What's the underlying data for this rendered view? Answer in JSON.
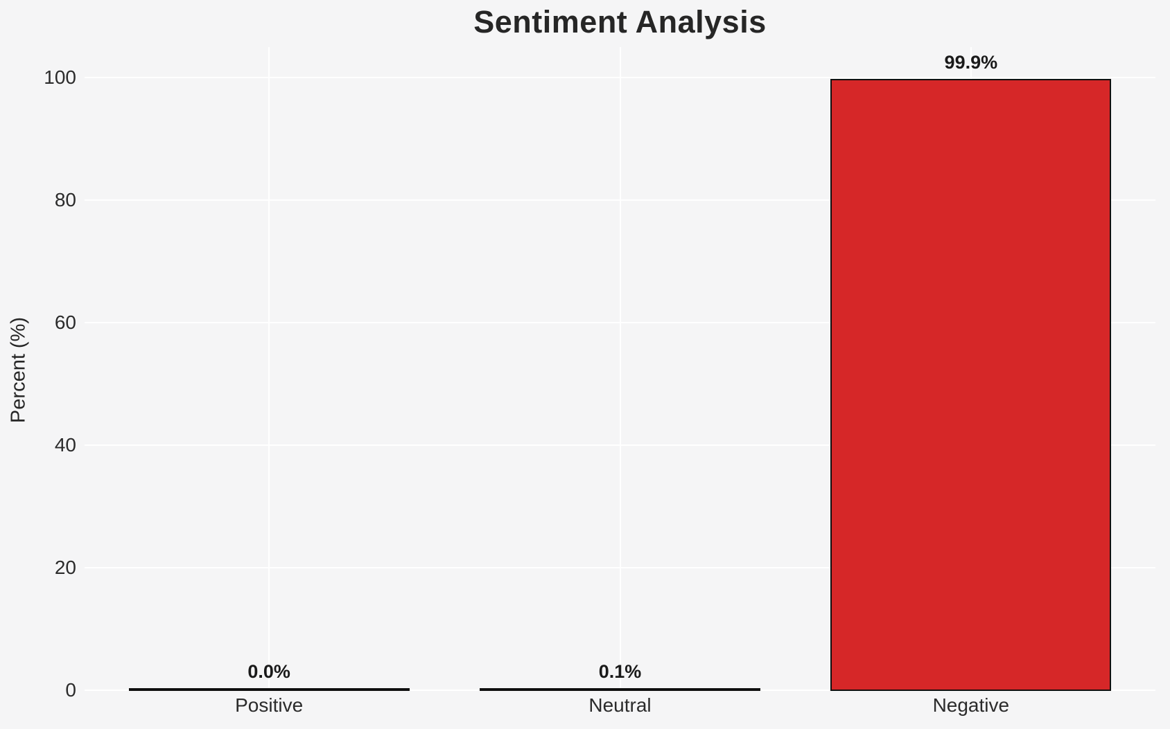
{
  "chart_data": {
    "type": "bar",
    "title": "Sentiment Analysis",
    "xlabel": "",
    "ylabel": "Percent (%)",
    "categories": [
      "Positive",
      "Neutral",
      "Negative"
    ],
    "values": [
      0.0,
      0.1,
      99.9
    ],
    "bar_labels": [
      "0.0%",
      "0.1%",
      "99.9%"
    ],
    "yticks": [
      0,
      20,
      40,
      60,
      80,
      100
    ],
    "ylim": [
      0,
      105
    ],
    "grid": "horizontal and vertical white gridlines on light gray background",
    "legend": "none",
    "colors": {
      "background": "#f5f5f6",
      "gridline": "#ffffff",
      "bar_fill": "#d62728",
      "bar_edge": "#0f0f0f",
      "text": "#262626"
    }
  }
}
